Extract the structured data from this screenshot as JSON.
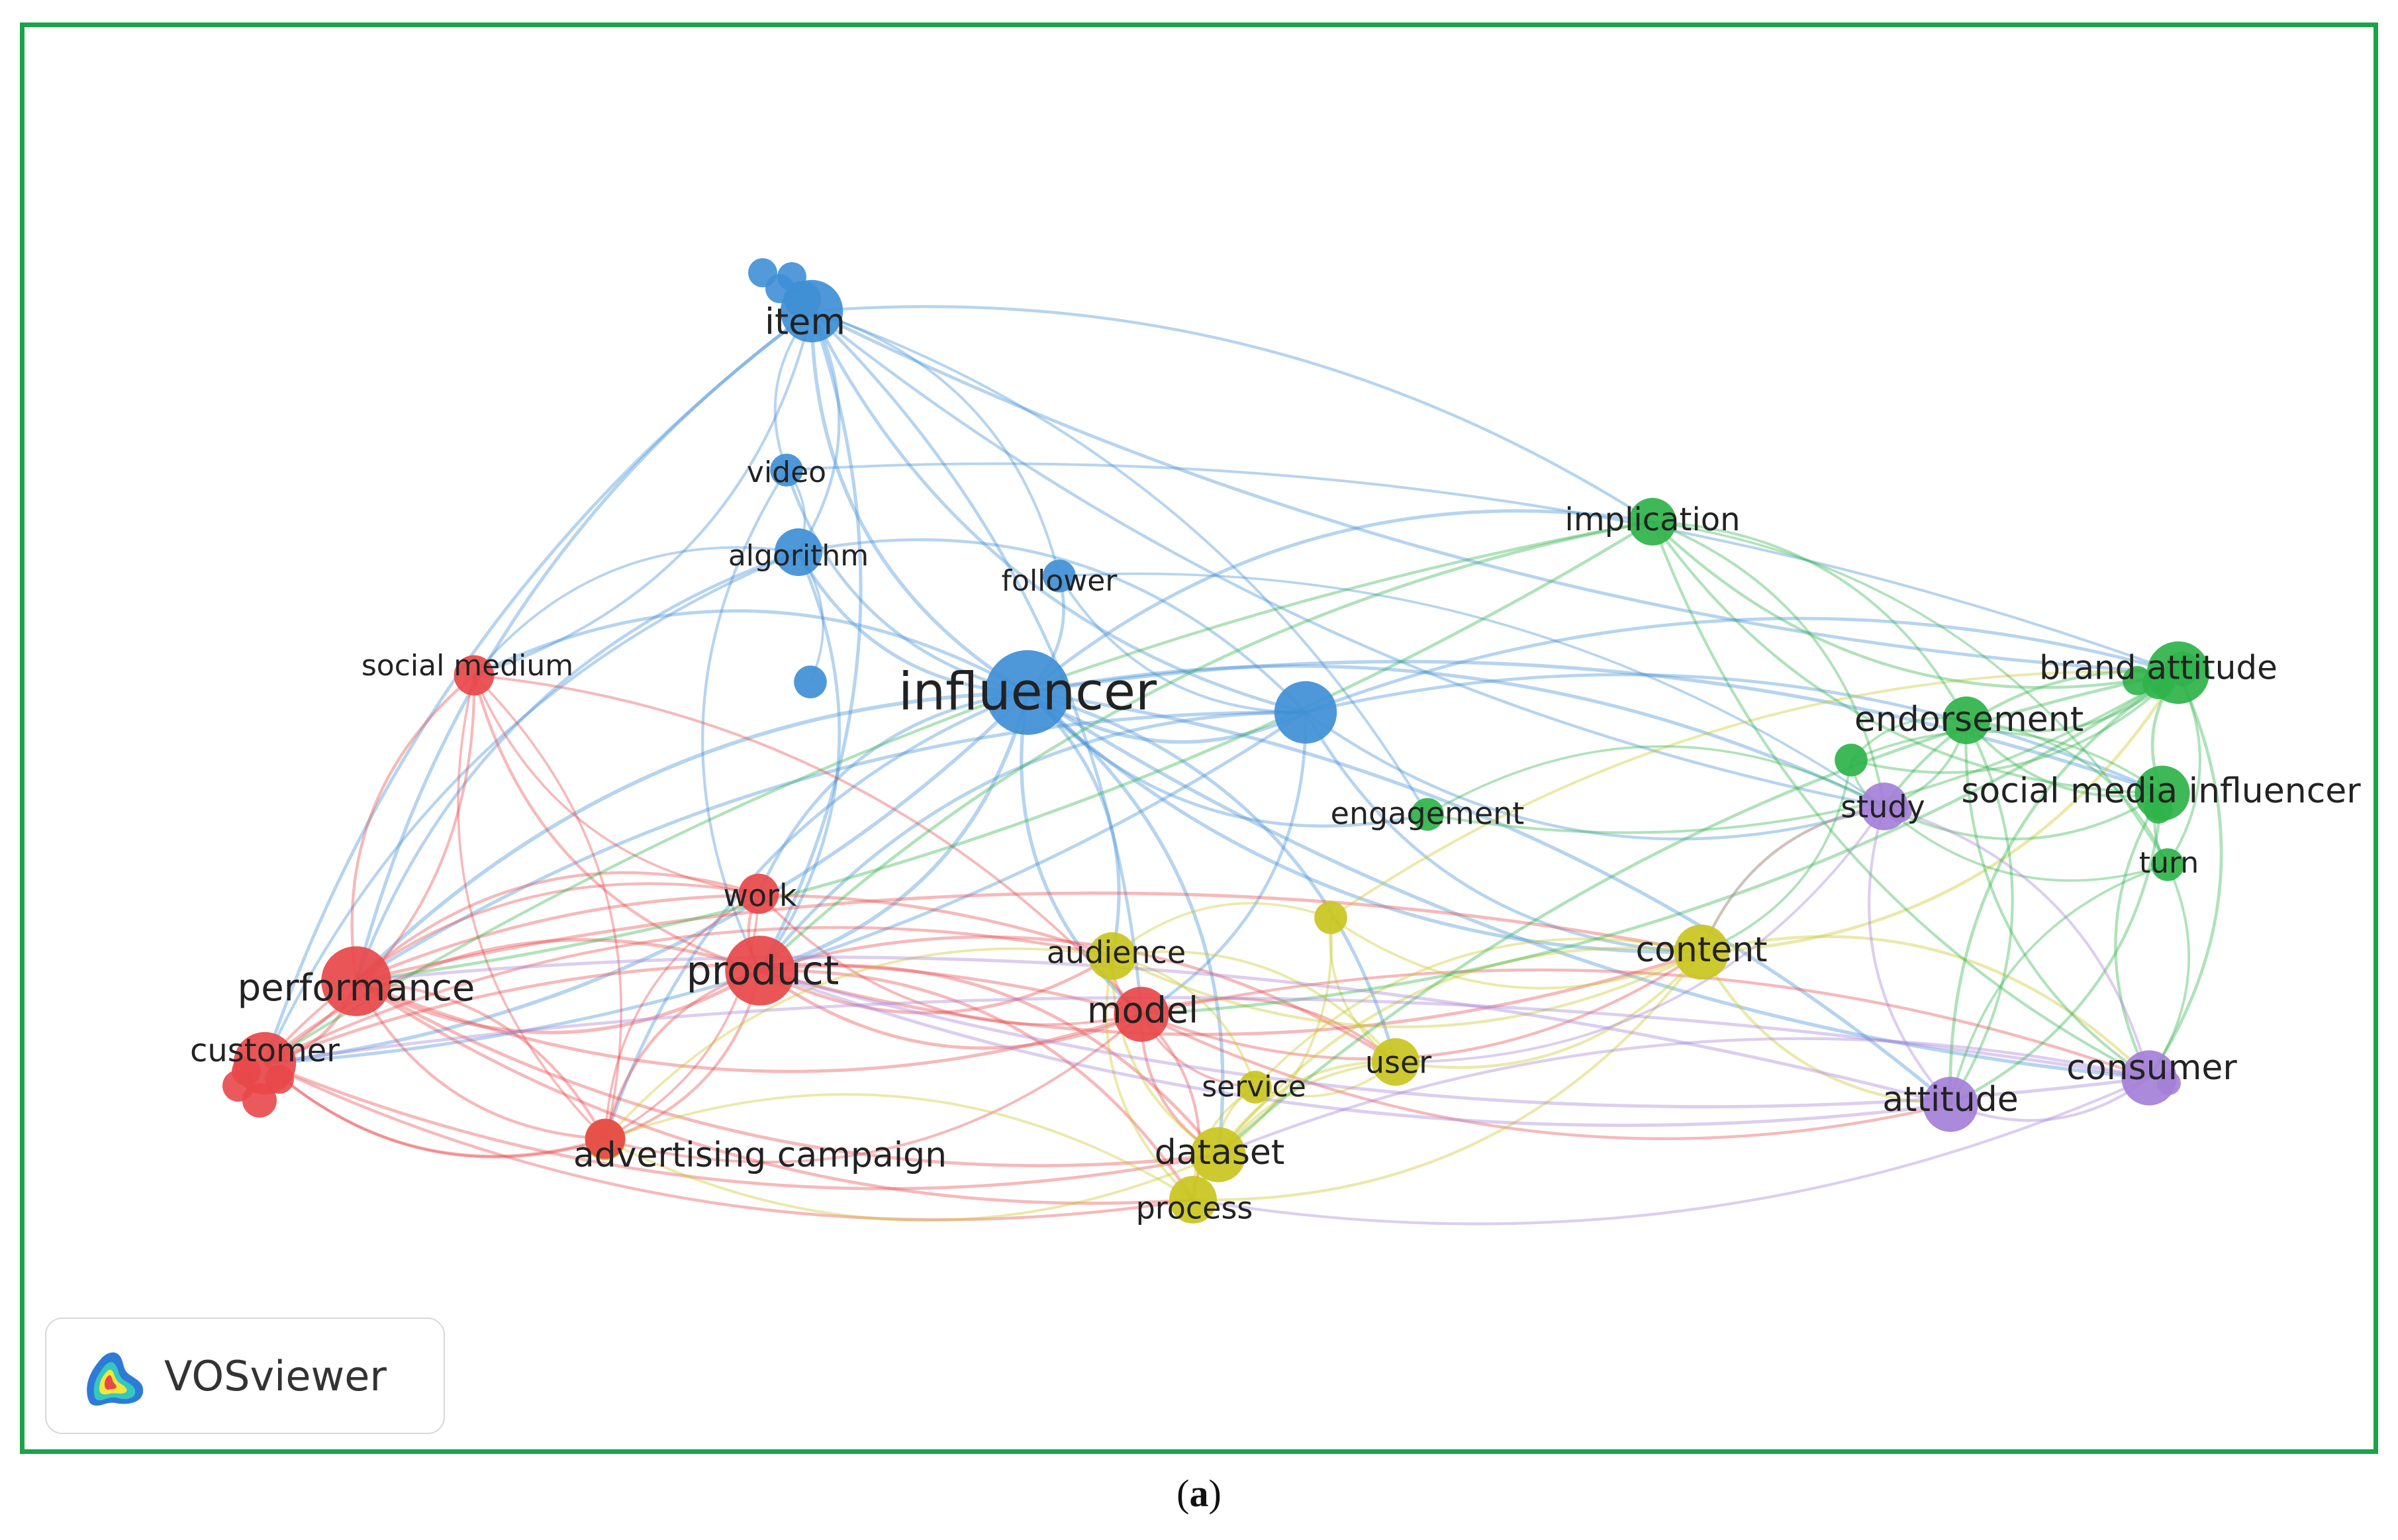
{
  "software": "VOSviewer",
  "caption": {
    "open": "(",
    "letter": "a",
    "close": ")"
  },
  "clusters": {
    "red": "#e8484a",
    "blue": "#3f8fd6",
    "green": "#2fb34a",
    "yellow": "#c9c51f",
    "purple": "#a47fd8"
  },
  "nodes": [
    {
      "id": "item",
      "label": "item",
      "cluster": "blue",
      "weight": 7
    },
    {
      "id": "video",
      "label": "video",
      "cluster": "blue",
      "weight": 3
    },
    {
      "id": "algorithm",
      "label": "algorithm",
      "cluster": "blue",
      "weight": 5
    },
    {
      "id": "follower",
      "label": "follower",
      "cluster": "blue",
      "weight": 3
    },
    {
      "id": "influencer",
      "label": "influencer",
      "cluster": "blue",
      "weight": 10
    },
    {
      "id": "blue_hub",
      "label": "",
      "cluster": "blue",
      "weight": 7
    },
    {
      "id": "blue_small",
      "label": "",
      "cluster": "blue",
      "weight": 3
    },
    {
      "id": "social_medium",
      "label": "social medium",
      "cluster": "red",
      "weight": 4
    },
    {
      "id": "work",
      "label": "work",
      "cluster": "red",
      "weight": 4
    },
    {
      "id": "product",
      "label": "product",
      "cluster": "red",
      "weight": 8
    },
    {
      "id": "performance",
      "label": "performance",
      "cluster": "red",
      "weight": 8
    },
    {
      "id": "customer",
      "label": "customer",
      "cluster": "red",
      "weight": 7
    },
    {
      "id": "model",
      "label": "model",
      "cluster": "red",
      "weight": 6
    },
    {
      "id": "advertising_campaign",
      "label": "advertising campaign",
      "cluster": "yellow",
      "weight": 4
    },
    {
      "id": "red_small",
      "label": "",
      "cluster": "red",
      "weight": 4
    },
    {
      "id": "audience",
      "label": "audience",
      "cluster": "yellow",
      "weight": 5
    },
    {
      "id": "content",
      "label": "content",
      "cluster": "yellow",
      "weight": 6
    },
    {
      "id": "user",
      "label": "user",
      "cluster": "yellow",
      "weight": 5
    },
    {
      "id": "service",
      "label": "service",
      "cluster": "yellow",
      "weight": 3
    },
    {
      "id": "dataset",
      "label": "dataset",
      "cluster": "yellow",
      "weight": 6
    },
    {
      "id": "process",
      "label": "process",
      "cluster": "yellow",
      "weight": 5
    },
    {
      "id": "yellow_small",
      "label": "",
      "cluster": "yellow",
      "weight": 3
    },
    {
      "id": "engagement",
      "label": "engagement",
      "cluster": "green",
      "weight": 3
    },
    {
      "id": "implication",
      "label": "implication",
      "cluster": "green",
      "weight": 5
    },
    {
      "id": "brand_attitude",
      "label": "brand attitude",
      "cluster": "green",
      "weight": 7
    },
    {
      "id": "endorsement",
      "label": "endorsement",
      "cluster": "green",
      "weight": 5
    },
    {
      "id": "social_media_influencer",
      "label": "social media influencer",
      "cluster": "green",
      "weight": 6
    },
    {
      "id": "turn",
      "label": "turn",
      "cluster": "green",
      "weight": 3
    },
    {
      "id": "green_small",
      "label": "",
      "cluster": "green",
      "weight": 3
    },
    {
      "id": "study",
      "label": "study",
      "cluster": "purple",
      "weight": 5
    },
    {
      "id": "attitude",
      "label": "attitude",
      "cluster": "purple",
      "weight": 6
    },
    {
      "id": "consumer",
      "label": "consumer",
      "cluster": "purple",
      "weight": 6
    }
  ],
  "links": [
    [
      "item",
      "influencer"
    ],
    [
      "item",
      "algorithm"
    ],
    [
      "item",
      "video"
    ],
    [
      "item",
      "follower"
    ],
    [
      "item",
      "blue_hub"
    ],
    [
      "item",
      "product"
    ],
    [
      "item",
      "performance"
    ],
    [
      "item",
      "implication"
    ],
    [
      "item",
      "brand_attitude"
    ],
    [
      "item",
      "social_medium"
    ],
    [
      "item",
      "study"
    ],
    [
      "item",
      "model"
    ],
    [
      "item",
      "customer"
    ],
    [
      "item",
      "engagement"
    ],
    [
      "video",
      "influencer"
    ],
    [
      "video",
      "algorithm"
    ],
    [
      "video",
      "product"
    ],
    [
      "video",
      "brand_attitude"
    ],
    [
      "algorithm",
      "influencer"
    ],
    [
      "algorithm",
      "blue_small"
    ],
    [
      "algorithm",
      "performance"
    ],
    [
      "algorithm",
      "product"
    ],
    [
      "algorithm",
      "social_medium"
    ],
    [
      "algorithm",
      "blue_hub"
    ],
    [
      "algorithm",
      "customer"
    ],
    [
      "follower",
      "influencer"
    ],
    [
      "follower",
      "blue_hub"
    ],
    [
      "follower",
      "study"
    ],
    [
      "influencer",
      "blue_hub"
    ],
    [
      "influencer",
      "product"
    ],
    [
      "influencer",
      "performance"
    ],
    [
      "influencer",
      "customer"
    ],
    [
      "influencer",
      "model"
    ],
    [
      "influencer",
      "audience"
    ],
    [
      "influencer",
      "content"
    ],
    [
      "influencer",
      "study"
    ],
    [
      "influencer",
      "engagement"
    ],
    [
      "influencer",
      "dataset"
    ],
    [
      "influencer",
      "advertising_campaign"
    ],
    [
      "influencer",
      "user"
    ],
    [
      "influencer",
      "social_medium"
    ],
    [
      "influencer",
      "attitude"
    ],
    [
      "influencer",
      "consumer"
    ],
    [
      "influencer",
      "implication"
    ],
    [
      "influencer",
      "work"
    ],
    [
      "influencer",
      "social_media_influencer"
    ],
    [
      "blue_hub",
      "study"
    ],
    [
      "blue_hub",
      "social_media_influencer"
    ],
    [
      "blue_hub",
      "product"
    ],
    [
      "blue_hub",
      "model"
    ],
    [
      "blue_hub",
      "performance"
    ],
    [
      "blue_hub",
      "brand_attitude"
    ],
    [
      "blue_hub",
      "content"
    ],
    [
      "blue_hub",
      "customer"
    ],
    [
      "social_medium",
      "performance"
    ],
    [
      "social_medium",
      "customer"
    ],
    [
      "social_medium",
      "product"
    ],
    [
      "social_medium",
      "advertising_campaign"
    ],
    [
      "social_medium",
      "work"
    ],
    [
      "social_medium",
      "model"
    ],
    [
      "social_medium",
      "red_small"
    ],
    [
      "performance",
      "customer"
    ],
    [
      "performance",
      "product"
    ],
    [
      "performance",
      "work"
    ],
    [
      "performance",
      "model"
    ],
    [
      "performance",
      "advertising_campaign"
    ],
    [
      "performance",
      "red_small"
    ],
    [
      "performance",
      "audience"
    ],
    [
      "performance",
      "dataset"
    ],
    [
      "performance",
      "content"
    ],
    [
      "performance",
      "process"
    ],
    [
      "customer",
      "product"
    ],
    [
      "customer",
      "advertising_campaign"
    ],
    [
      "customer",
      "model"
    ],
    [
      "customer",
      "red_small"
    ],
    [
      "customer",
      "work"
    ],
    [
      "customer",
      "dataset"
    ],
    [
      "customer",
      "audience"
    ],
    [
      "customer",
      "process"
    ],
    [
      "product",
      "work"
    ],
    [
      "product",
      "model"
    ],
    [
      "product",
      "advertising_campaign"
    ],
    [
      "product",
      "audience"
    ],
    [
      "product",
      "dataset"
    ],
    [
      "product",
      "content"
    ],
    [
      "product",
      "user"
    ],
    [
      "product",
      "red_small"
    ],
    [
      "product",
      "process"
    ],
    [
      "work",
      "model"
    ],
    [
      "work",
      "red_small"
    ],
    [
      "work",
      "advertising_campaign"
    ],
    [
      "model",
      "audience"
    ],
    [
      "model",
      "dataset"
    ],
    [
      "model",
      "user"
    ],
    [
      "model",
      "service"
    ],
    [
      "model",
      "process"
    ],
    [
      "model",
      "content"
    ],
    [
      "model",
      "advertising_campaign"
    ],
    [
      "model",
      "attitude"
    ],
    [
      "model",
      "consumer"
    ],
    [
      "advertising_campaign",
      "dataset"
    ],
    [
      "advertising_campaign",
      "process"
    ],
    [
      "advertising_campaign",
      "red_small"
    ],
    [
      "advertising_campaign",
      "audience"
    ],
    [
      "audience",
      "dataset"
    ],
    [
      "audience",
      "user"
    ],
    [
      "audience",
      "content"
    ],
    [
      "audience",
      "service"
    ],
    [
      "audience",
      "process"
    ],
    [
      "content",
      "user"
    ],
    [
      "content",
      "dataset"
    ],
    [
      "content",
      "study"
    ],
    [
      "content",
      "attitude"
    ],
    [
      "content",
      "consumer"
    ],
    [
      "content",
      "brand_attitude"
    ],
    [
      "content",
      "yellow_small"
    ],
    [
      "content",
      "service"
    ],
    [
      "content",
      "process"
    ],
    [
      "user",
      "dataset"
    ],
    [
      "user",
      "service"
    ],
    [
      "user",
      "process"
    ],
    [
      "user",
      "yellow_small"
    ],
    [
      "dataset",
      "process"
    ],
    [
      "dataset",
      "service"
    ],
    [
      "service",
      "process"
    ],
    [
      "yellow_small",
      "brand_attitude"
    ],
    [
      "yellow_small",
      "audience"
    ],
    [
      "yellow_small",
      "dataset"
    ],
    [
      "engagement",
      "brand_attitude"
    ],
    [
      "engagement",
      "study"
    ],
    [
      "implication",
      "brand_attitude"
    ],
    [
      "implication",
      "endorsement"
    ],
    [
      "implication",
      "social_media_influencer"
    ],
    [
      "implication",
      "study"
    ],
    [
      "implication",
      "consumer"
    ],
    [
      "implication",
      "turn"
    ],
    [
      "implication",
      "product"
    ],
    [
      "implication",
      "performance"
    ],
    [
      "implication",
      "customer"
    ],
    [
      "brand_attitude",
      "endorsement"
    ],
    [
      "brand_attitude",
      "social_media_influencer"
    ],
    [
      "brand_attitude",
      "turn"
    ],
    [
      "brand_attitude",
      "study"
    ],
    [
      "brand_attitude",
      "consumer"
    ],
    [
      "brand_attitude",
      "attitude"
    ],
    [
      "brand_attitude",
      "green_small"
    ],
    [
      "brand_attitude",
      "dataset"
    ],
    [
      "brand_attitude",
      "model"
    ],
    [
      "endorsement",
      "social_media_influencer"
    ],
    [
      "endorsement",
      "study"
    ],
    [
      "endorsement",
      "consumer"
    ],
    [
      "endorsement",
      "attitude"
    ],
    [
      "endorsement",
      "green_small"
    ],
    [
      "endorsement",
      "turn"
    ],
    [
      "social_media_influencer",
      "turn"
    ],
    [
      "social_media_influencer",
      "study"
    ],
    [
      "social_media_influencer",
      "consumer"
    ],
    [
      "social_media_influencer",
      "attitude"
    ],
    [
      "social_media_influencer",
      "green_small"
    ],
    [
      "turn",
      "consumer"
    ],
    [
      "turn",
      "attitude"
    ],
    [
      "turn",
      "study"
    ],
    [
      "green_small",
      "study"
    ],
    [
      "green_small",
      "content"
    ],
    [
      "study",
      "attitude"
    ],
    [
      "study",
      "consumer"
    ],
    [
      "study",
      "content"
    ],
    [
      "study",
      "user"
    ],
    [
      "attitude",
      "consumer"
    ],
    [
      "attitude",
      "product"
    ],
    [
      "attitude",
      "performance"
    ],
    [
      "consumer",
      "product"
    ],
    [
      "consumer",
      "customer"
    ],
    [
      "consumer",
      "process"
    ],
    [
      "consumer",
      "dataset"
    ]
  ]
}
